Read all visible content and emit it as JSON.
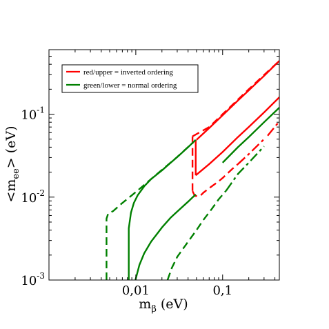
{
  "chart_data": {
    "type": "line",
    "xscale": "log",
    "yscale": "log",
    "xlim": [
      0.001,
      0.45
    ],
    "ylim": [
      0.001,
      0.6
    ],
    "xlabel": {
      "main": "m",
      "sub": "β",
      "unit": " (eV)"
    },
    "ylabel": {
      "pre": "<m",
      "sub": "ee",
      "post": "> (eV)"
    },
    "x_ticks": [
      {
        "value": 0.01,
        "label": "0,01"
      },
      {
        "value": 0.1,
        "label": "0,1"
      }
    ],
    "y_ticks": [
      {
        "value": 0.001,
        "base": "10",
        "exp": "-3"
      },
      {
        "value": 0.01,
        "base": "10",
        "exp": "-2"
      },
      {
        "value": 0.1,
        "base": "10",
        "exp": "-1"
      }
    ],
    "grid": false,
    "legend": {
      "placement": "top-left",
      "entries": [
        {
          "label": "red/upper = inverted ordering",
          "color": "#ff0000"
        },
        {
          "label": "green/lower = normal ordering",
          "color": "#008000"
        }
      ]
    },
    "series": [
      {
        "color": "#ff0000",
        "style": "solid",
        "points": [
          [
            0.05,
            0.049
          ],
          [
            0.07,
            0.068
          ],
          [
            0.1,
            0.097
          ],
          [
            0.15,
            0.146
          ],
          [
            0.2,
            0.194
          ],
          [
            0.3,
            0.29
          ],
          [
            0.45,
            0.44
          ]
        ]
      },
      {
        "color": "#ff0000",
        "style": "solid",
        "points": [
          [
            0.049,
            0.049
          ],
          [
            0.049,
            0.0183
          ]
        ]
      },
      {
        "color": "#ff0000",
        "style": "solid",
        "points": [
          [
            0.049,
            0.0183
          ],
          [
            0.07,
            0.025
          ],
          [
            0.1,
            0.035
          ],
          [
            0.15,
            0.053
          ],
          [
            0.2,
            0.07
          ],
          [
            0.3,
            0.105
          ],
          [
            0.45,
            0.16
          ]
        ]
      },
      {
        "color": "#ff0000",
        "style": "dashed",
        "points": [
          [
            0.045,
            0.054
          ],
          [
            0.07,
            0.07
          ],
          [
            0.1,
            0.1
          ],
          [
            0.2,
            0.2
          ],
          [
            0.45,
            0.44
          ]
        ]
      },
      {
        "color": "#ff0000",
        "style": "dashed",
        "points": [
          [
            0.045,
            0.054
          ],
          [
            0.045,
            0.0118
          ]
        ]
      },
      {
        "color": "#ff0000",
        "style": "dashed",
        "points": [
          [
            0.045,
            0.0118
          ],
          [
            0.048,
            0.0103
          ],
          [
            0.055,
            0.0103
          ],
          [
            0.06,
            0.0113
          ],
          [
            0.075,
            0.0135
          ],
          [
            0.09,
            0.0155
          ],
          [
            0.1,
            0.017
          ],
          [
            0.13,
            0.022
          ],
          [
            0.15,
            0.025
          ]
        ]
      },
      {
        "color": "#ff0000",
        "style": "dashdot",
        "points": [
          [
            0.15,
            0.025
          ],
          [
            0.2,
            0.033
          ],
          [
            0.3,
            0.05
          ]
        ]
      },
      {
        "color": "#ff0000",
        "style": "dashdot",
        "points": [
          [
            0.33,
            0.055
          ],
          [
            0.45,
            0.082
          ]
        ]
      },
      {
        "color": "#008000",
        "style": "solid",
        "points": [
          [
            0.0083,
            0.001
          ],
          [
            0.0083,
            0.0042
          ],
          [
            0.0088,
            0.0065
          ],
          [
            0.0095,
            0.0085
          ],
          [
            0.0105,
            0.0105
          ],
          [
            0.0125,
            0.0135
          ],
          [
            0.015,
            0.0165
          ],
          [
            0.02,
            0.021
          ],
          [
            0.025,
            0.0258
          ],
          [
            0.03,
            0.0304
          ],
          [
            0.04,
            0.04
          ],
          [
            0.049,
            0.049
          ]
        ]
      },
      {
        "color": "#008000",
        "style": "solid",
        "points": [
          [
            0.0099,
            0.001
          ],
          [
            0.011,
            0.00152
          ],
          [
            0.0125,
            0.0021
          ],
          [
            0.015,
            0.0029
          ],
          [
            0.02,
            0.0043
          ],
          [
            0.025,
            0.0056
          ],
          [
            0.03,
            0.0067
          ],
          [
            0.04,
            0.0088
          ],
          [
            0.049,
            0.0108
          ]
        ]
      },
      {
        "color": "#008000",
        "style": "solid",
        "points": [
          [
            0.1,
            0.026
          ],
          [
            0.15,
            0.04
          ],
          [
            0.2,
            0.053
          ],
          [
            0.3,
            0.08
          ],
          [
            0.45,
            0.12
          ]
        ]
      },
      {
        "color": "#008000",
        "style": "dashed",
        "points": [
          [
            0.0046,
            0.001
          ],
          [
            0.0046,
            0.0055
          ],
          [
            0.0048,
            0.0063
          ],
          [
            0.0055,
            0.0068
          ],
          [
            0.007,
            0.0085
          ],
          [
            0.01,
            0.0115
          ],
          [
            0.015,
            0.0165
          ],
          [
            0.02,
            0.0213
          ],
          [
            0.03,
            0.0305
          ],
          [
            0.045,
            0.045
          ]
        ]
      },
      {
        "color": "#008000",
        "style": "dashed",
        "points": [
          [
            0.0232,
            0.001
          ],
          [
            0.026,
            0.0014
          ],
          [
            0.03,
            0.0019
          ],
          [
            0.04,
            0.0029
          ],
          [
            0.05,
            0.004
          ],
          [
            0.06,
            0.0053
          ],
          [
            0.075,
            0.0072
          ],
          [
            0.09,
            0.0094
          ],
          [
            0.11,
            0.012
          ]
        ]
      },
      {
        "color": "#008000",
        "style": "dashdot",
        "points": [
          [
            0.11,
            0.012
          ],
          [
            0.15,
            0.019
          ],
          [
            0.2,
            0.026
          ],
          [
            0.3,
            0.041
          ]
        ]
      }
    ]
  }
}
